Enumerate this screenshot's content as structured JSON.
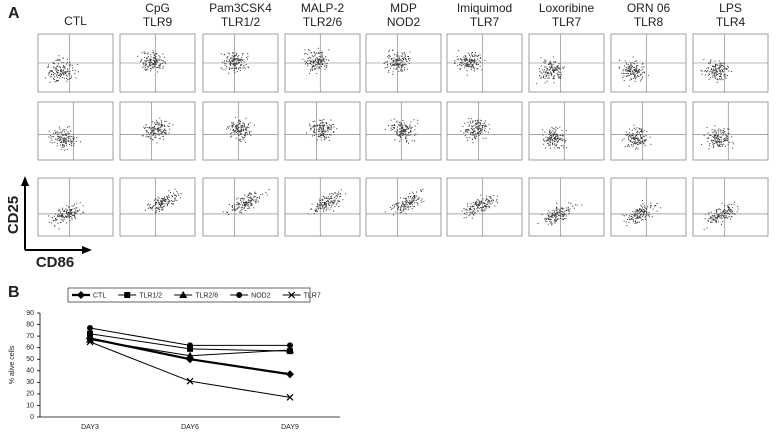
{
  "panel_a": {
    "label": "A",
    "columns": [
      [
        "CTL"
      ],
      [
        "CpG",
        "TLR9"
      ],
      [
        "Pam3CSK4",
        "TLR1/2"
      ],
      [
        "MALP-2",
        "TLR2/6"
      ],
      [
        "MDP",
        "NOD2"
      ],
      [
        "Imiquimod",
        "TLR7"
      ],
      [
        "Loxoribine",
        "TLR7"
      ],
      [
        "ORN 06",
        "TLR8"
      ],
      [
        "LPS",
        "TLR4"
      ]
    ],
    "y_axis_label": "CD25",
    "x_axis_label": "CD86"
  },
  "chart_data": {
    "type": "line",
    "panel_label": "B",
    "y_label": "% alive cells",
    "categories": [
      "DAY3",
      "DAY6",
      "DAY9"
    ],
    "ylim": [
      0,
      90
    ],
    "yticks": [
      0,
      10,
      20,
      30,
      40,
      50,
      60,
      70,
      80,
      90
    ],
    "series": [
      {
        "name": "CTL",
        "color": "#000000",
        "marker": "diamond",
        "line_width": 2.2,
        "values": [
          68,
          50,
          37
        ]
      },
      {
        "name": "TLR1/2",
        "color": "#000000",
        "marker": "square",
        "line_width": 1,
        "values": [
          72,
          59,
          57
        ]
      },
      {
        "name": "TLR2/6",
        "color": "#000000",
        "marker": "triangle",
        "line_width": 1,
        "values": [
          67,
          53,
          58
        ]
      },
      {
        "name": "NOD2",
        "color": "#000000",
        "marker": "circle",
        "line_width": 1,
        "values": [
          77,
          62,
          62
        ]
      },
      {
        "name": "TLR7",
        "color": "#000000",
        "marker": "x",
        "line_width": 1,
        "values": [
          65,
          31,
          17
        ]
      }
    ]
  }
}
